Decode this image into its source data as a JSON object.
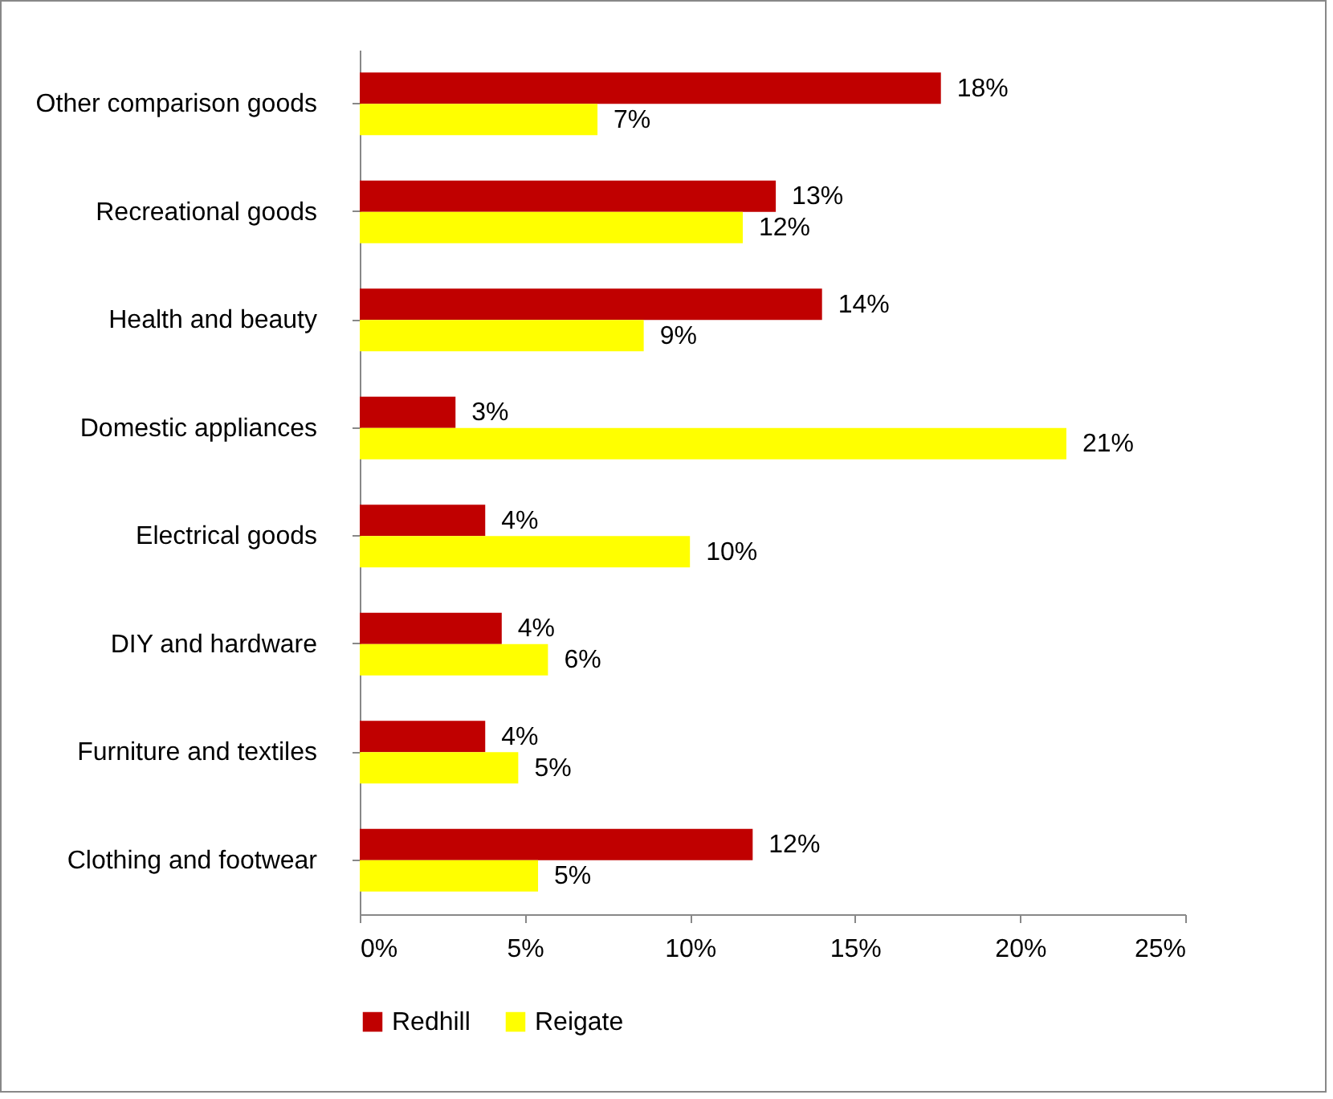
{
  "chart_data": {
    "type": "bar",
    "orientation": "horizontal",
    "categories": [
      "Other comparison goods",
      "Recreational goods",
      "Health and beauty",
      "Domestic appliances",
      "Electrical goods",
      "DIY and hardware",
      "Furniture and textiles",
      "Clothing and footwear"
    ],
    "series": [
      {
        "name": "Redhill",
        "color": "#c00000",
        "values": [
          17.6,
          12.6,
          14.0,
          2.9,
          3.8,
          4.3,
          3.8,
          11.9
        ],
        "value_labels": [
          "18%",
          "13%",
          "14%",
          "3%",
          "4%",
          "4%",
          "4%",
          "12%"
        ]
      },
      {
        "name": "Reigate",
        "color": "#ffff00",
        "values": [
          7.2,
          11.6,
          8.6,
          21.4,
          10.0,
          5.7,
          4.8,
          5.4
        ],
        "value_labels": [
          "7%",
          "12%",
          "9%",
          "21%",
          "10%",
          "6%",
          "5%",
          "5%"
        ]
      }
    ],
    "xlim": [
      0,
      25
    ],
    "xticks": [
      {
        "value": 0,
        "label": "0%"
      },
      {
        "value": 5,
        "label": "5%"
      },
      {
        "value": 10,
        "label": "10%"
      },
      {
        "value": 15,
        "label": "15%"
      },
      {
        "value": 20,
        "label": "20%"
      },
      {
        "value": 25,
        "label": "25%"
      }
    ],
    "grid": false,
    "legend": "bottom"
  }
}
